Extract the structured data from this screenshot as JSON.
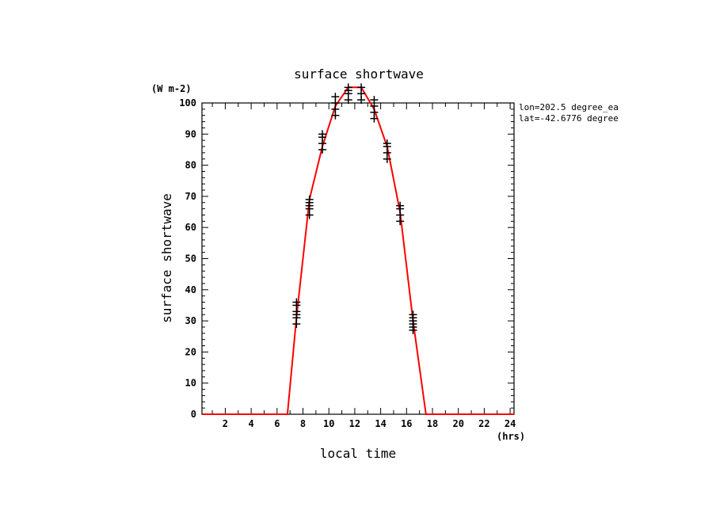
{
  "chart_data": {
    "type": "line",
    "title": "surface shortwave",
    "xlabel": "local time",
    "ylabel": "surface shortwave",
    "x_units": "(hrs)",
    "y_units": "(W m-2)",
    "annotations": [
      "lon=202.5 degree_ea",
      "lat=-42.6776 degree"
    ],
    "xlim": [
      0.2,
      24.3
    ],
    "ylim": [
      0,
      100
    ],
    "x_ticks": [
      2,
      4,
      6,
      8,
      10,
      12,
      14,
      16,
      18,
      20,
      22,
      24
    ],
    "y_ticks": [
      0,
      10,
      20,
      30,
      40,
      50,
      60,
      70,
      80,
      90,
      100
    ],
    "grid": false,
    "line_color": "#ff0000",
    "marker_color": "#000000",
    "series": [
      {
        "type": "line",
        "x": [
          0.2,
          6.8,
          7.5,
          8.5,
          9.5,
          10.5,
          11.5,
          12.5,
          13.5,
          14.5,
          15.5,
          16.5,
          17.5,
          24.3
        ],
        "y": [
          0,
          0,
          31,
          69,
          86,
          99,
          105,
          105,
          98,
          86,
          65,
          30,
          0,
          0
        ]
      },
      {
        "type": "scatter",
        "marker": "+",
        "x": [
          7.5,
          7.5,
          7.5,
          7.5,
          7.5,
          7.5,
          8.5,
          8.5,
          8.5,
          8.5,
          8.5,
          9.5,
          9.5,
          9.5,
          9.5,
          10.5,
          10.5,
          10.5,
          10.5,
          11.5,
          11.5,
          11.5,
          11.5,
          12.5,
          12.5,
          12.5,
          13.5,
          13.5,
          13.5,
          13.5,
          14.5,
          14.5,
          14.5,
          14.5,
          15.5,
          15.5,
          15.5,
          15.5,
          16.5,
          16.5,
          16.5,
          16.5,
          16.5,
          16.5
        ],
        "y": [
          29,
          31,
          32,
          33,
          35,
          36,
          64,
          66,
          67,
          68,
          69,
          85,
          87,
          89,
          90,
          96,
          98,
          100,
          102,
          101,
          103,
          104,
          105,
          101,
          103,
          105,
          95,
          97,
          99,
          101,
          82,
          84,
          86,
          87,
          62,
          64,
          66,
          67,
          27,
          28,
          29,
          30,
          31,
          32
        ]
      }
    ]
  }
}
